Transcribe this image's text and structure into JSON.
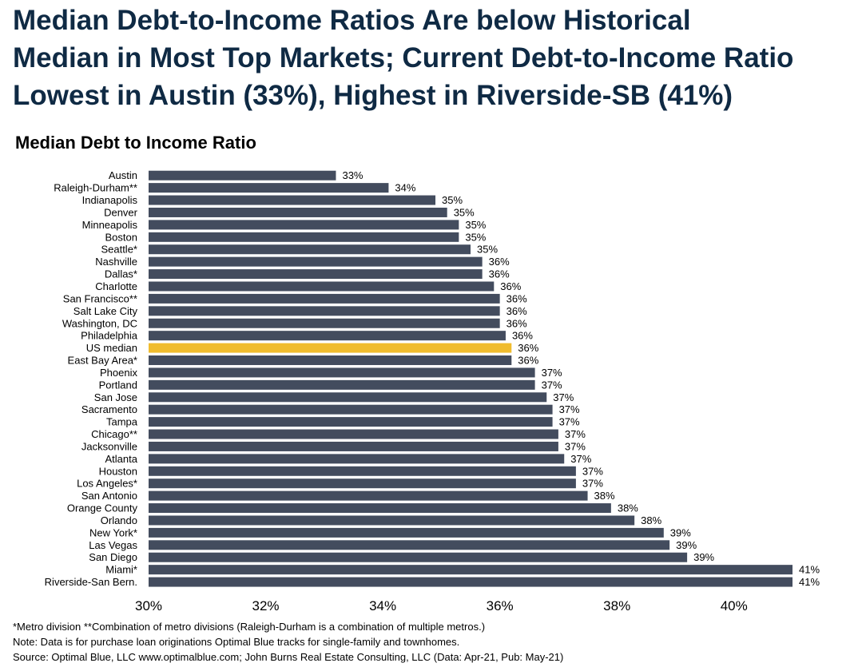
{
  "headline": {
    "line1": "Median Debt-to-Income Ratios Are below Historical",
    "line2": "Median in Most Top Markets; Current Debt-to-Income Ratio",
    "line3": "Lowest in Austin (33%), Highest in Riverside-SB (41%)"
  },
  "colors": {
    "bar": "#434c5e",
    "highlight": "#f0bc2e",
    "headline": "#0f2a44"
  },
  "chart_data": {
    "type": "bar",
    "orientation": "horizontal",
    "title": "Median Debt to Income Ratio",
    "categories": [
      "Austin",
      "Raleigh-Durham**",
      "Indianapolis",
      "Denver",
      "Minneapolis",
      "Boston",
      "Seattle*",
      "Nashville",
      "Dallas*",
      "Charlotte",
      "San Francisco**",
      "Salt Lake City",
      "Washington, DC",
      "Philadelphia",
      "US median",
      "East Bay Area*",
      "Phoenix",
      "Portland",
      "San Jose",
      "Sacramento",
      "Tampa",
      "Chicago**",
      "Jacksonville",
      "Atlanta",
      "Houston",
      "Los Angeles*",
      "San Antonio",
      "Orange County",
      "Orlando",
      "New York*",
      "Las Vegas",
      "San Diego",
      "Miami*",
      "Riverside-San Bern."
    ],
    "values": [
      33.2,
      34.1,
      34.9,
      35.1,
      35.3,
      35.3,
      35.5,
      35.7,
      35.7,
      35.9,
      36.0,
      36.0,
      36.0,
      36.1,
      36.2,
      36.2,
      36.6,
      36.6,
      36.8,
      36.9,
      36.9,
      37.0,
      37.0,
      37.1,
      37.3,
      37.3,
      37.5,
      37.9,
      38.3,
      38.8,
      38.9,
      39.2,
      41.0,
      41.0
    ],
    "data_labels": [
      "33%",
      "34%",
      "35%",
      "35%",
      "35%",
      "35%",
      "35%",
      "36%",
      "36%",
      "36%",
      "36%",
      "36%",
      "36%",
      "36%",
      "36%",
      "36%",
      "37%",
      "37%",
      "37%",
      "37%",
      "37%",
      "37%",
      "37%",
      "37%",
      "37%",
      "37%",
      "38%",
      "38%",
      "38%",
      "39%",
      "39%",
      "39%",
      "41%",
      "41%"
    ],
    "highlight": "US median",
    "xlim": [
      30,
      41
    ],
    "xticks": [
      30,
      32,
      34,
      36,
      38,
      40
    ],
    "xtick_labels": [
      "30%",
      "32%",
      "34%",
      "36%",
      "38%",
      "40%"
    ],
    "grid": false,
    "legend": "none"
  },
  "notes": {
    "line1": "*Metro division **Combination of metro divisions (Raleigh-Durham is a combination of multiple metros.)",
    "line2": "Note: Data is for purchase loan originations Optimal Blue tracks for single-family and townhomes.",
    "line3": "Source: Optimal Blue, LLC www.optimalblue.com;  John Burns Real Estate Consulting, LLC (Data: Apr-21, Pub: May-21)"
  }
}
